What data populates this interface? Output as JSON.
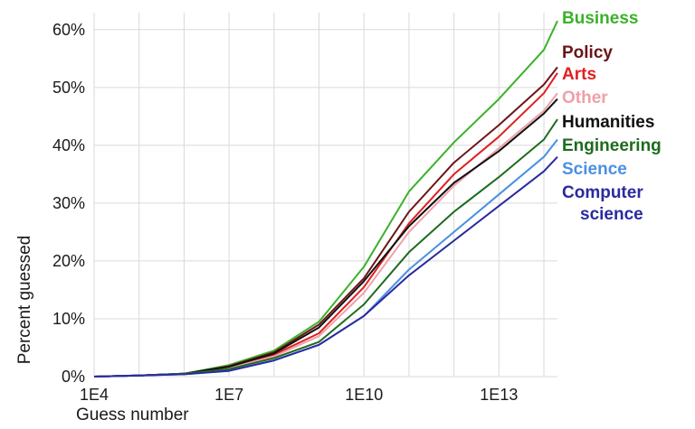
{
  "chart_data": {
    "type": "line",
    "title": "",
    "xlabel": "Guess number",
    "ylabel": "Percent guessed",
    "x_scale": "log",
    "xlim": [
      10000,
      200000000000000
    ],
    "ylim": [
      0,
      62
    ],
    "x_ticks": [
      {
        "value": 10000,
        "label": "1E4"
      },
      {
        "value": 10000000,
        "label": "1E7"
      },
      {
        "value": 10000000000,
        "label": "1E10"
      },
      {
        "value": 10000000000000,
        "label": "1E13"
      }
    ],
    "y_ticks": [
      {
        "value": 0,
        "label": "0%"
      },
      {
        "value": 10,
        "label": "10%"
      },
      {
        "value": 20,
        "label": "20%"
      },
      {
        "value": 30,
        "label": "30%"
      },
      {
        "value": 40,
        "label": "40%"
      },
      {
        "value": 50,
        "label": "50%"
      },
      {
        "value": 60,
        "label": "60%"
      }
    ],
    "grid": true,
    "legend_placement": "right",
    "x": [
      10000,
      100000,
      1000000,
      10000000,
      100000000,
      1000000000,
      10000000000,
      100000000000,
      1000000000000,
      10000000000000,
      100000000000000,
      200000000000000
    ],
    "series": [
      {
        "name": "Business",
        "color": "#3bb22a",
        "values": [
          0,
          0.2,
          0.5,
          2.0,
          4.5,
          9.5,
          19.0,
          32.0,
          40.5,
          48.0,
          56.5,
          61.5
        ]
      },
      {
        "name": "Policy",
        "color": "#6b1518",
        "values": [
          0,
          0.2,
          0.5,
          1.8,
          4.2,
          9.0,
          17.0,
          28.5,
          37.0,
          43.5,
          50.5,
          53.5
        ]
      },
      {
        "name": "Arts",
        "color": "#e02020",
        "values": [
          0,
          0.2,
          0.5,
          1.5,
          3.8,
          7.5,
          15.5,
          26.5,
          35.0,
          41.5,
          49.0,
          52.5
        ]
      },
      {
        "name": "Other",
        "color": "#f0a0a8",
        "values": [
          0,
          0.2,
          0.5,
          1.5,
          3.5,
          7.0,
          14.5,
          25.0,
          33.0,
          39.5,
          46.0,
          49.0
        ]
      },
      {
        "name": "Humanities",
        "color": "#111111",
        "values": [
          0,
          0.2,
          0.5,
          1.7,
          4.0,
          8.5,
          16.5,
          26.0,
          33.5,
          39.0,
          45.5,
          48.0
        ]
      },
      {
        "name": "Engineering",
        "color": "#1e6b1e",
        "values": [
          0,
          0.2,
          0.5,
          1.3,
          3.2,
          6.0,
          12.5,
          21.5,
          28.5,
          34.5,
          41.0,
          44.5
        ]
      },
      {
        "name": "Science",
        "color": "#4a90e2",
        "values": [
          0,
          0.2,
          0.4,
          1.0,
          2.8,
          5.5,
          10.5,
          18.5,
          25.0,
          31.5,
          38.0,
          41.0
        ]
      },
      {
        "name": "Computer science",
        "color": "#2a2aa0",
        "values": [
          0,
          0.2,
          0.4,
          1.0,
          2.8,
          5.5,
          10.5,
          17.5,
          23.5,
          29.5,
          35.5,
          38.0
        ]
      }
    ],
    "legend": [
      {
        "lines": [
          "Business"
        ],
        "color": "#3bb22a"
      },
      {
        "lines": [
          "Policy"
        ],
        "color": "#6b1518"
      },
      {
        "lines": [
          "Arts"
        ],
        "color": "#e02020"
      },
      {
        "lines": [
          "Other"
        ],
        "color": "#f0a0a8"
      },
      {
        "lines": [
          "Humanities"
        ],
        "color": "#111111"
      },
      {
        "lines": [
          "Engineering"
        ],
        "color": "#1e6b1e"
      },
      {
        "lines": [
          "Science"
        ],
        "color": "#4a90e2"
      },
      {
        "lines": [
          "Computer",
          "science"
        ],
        "color": "#2a2aa0"
      }
    ]
  }
}
